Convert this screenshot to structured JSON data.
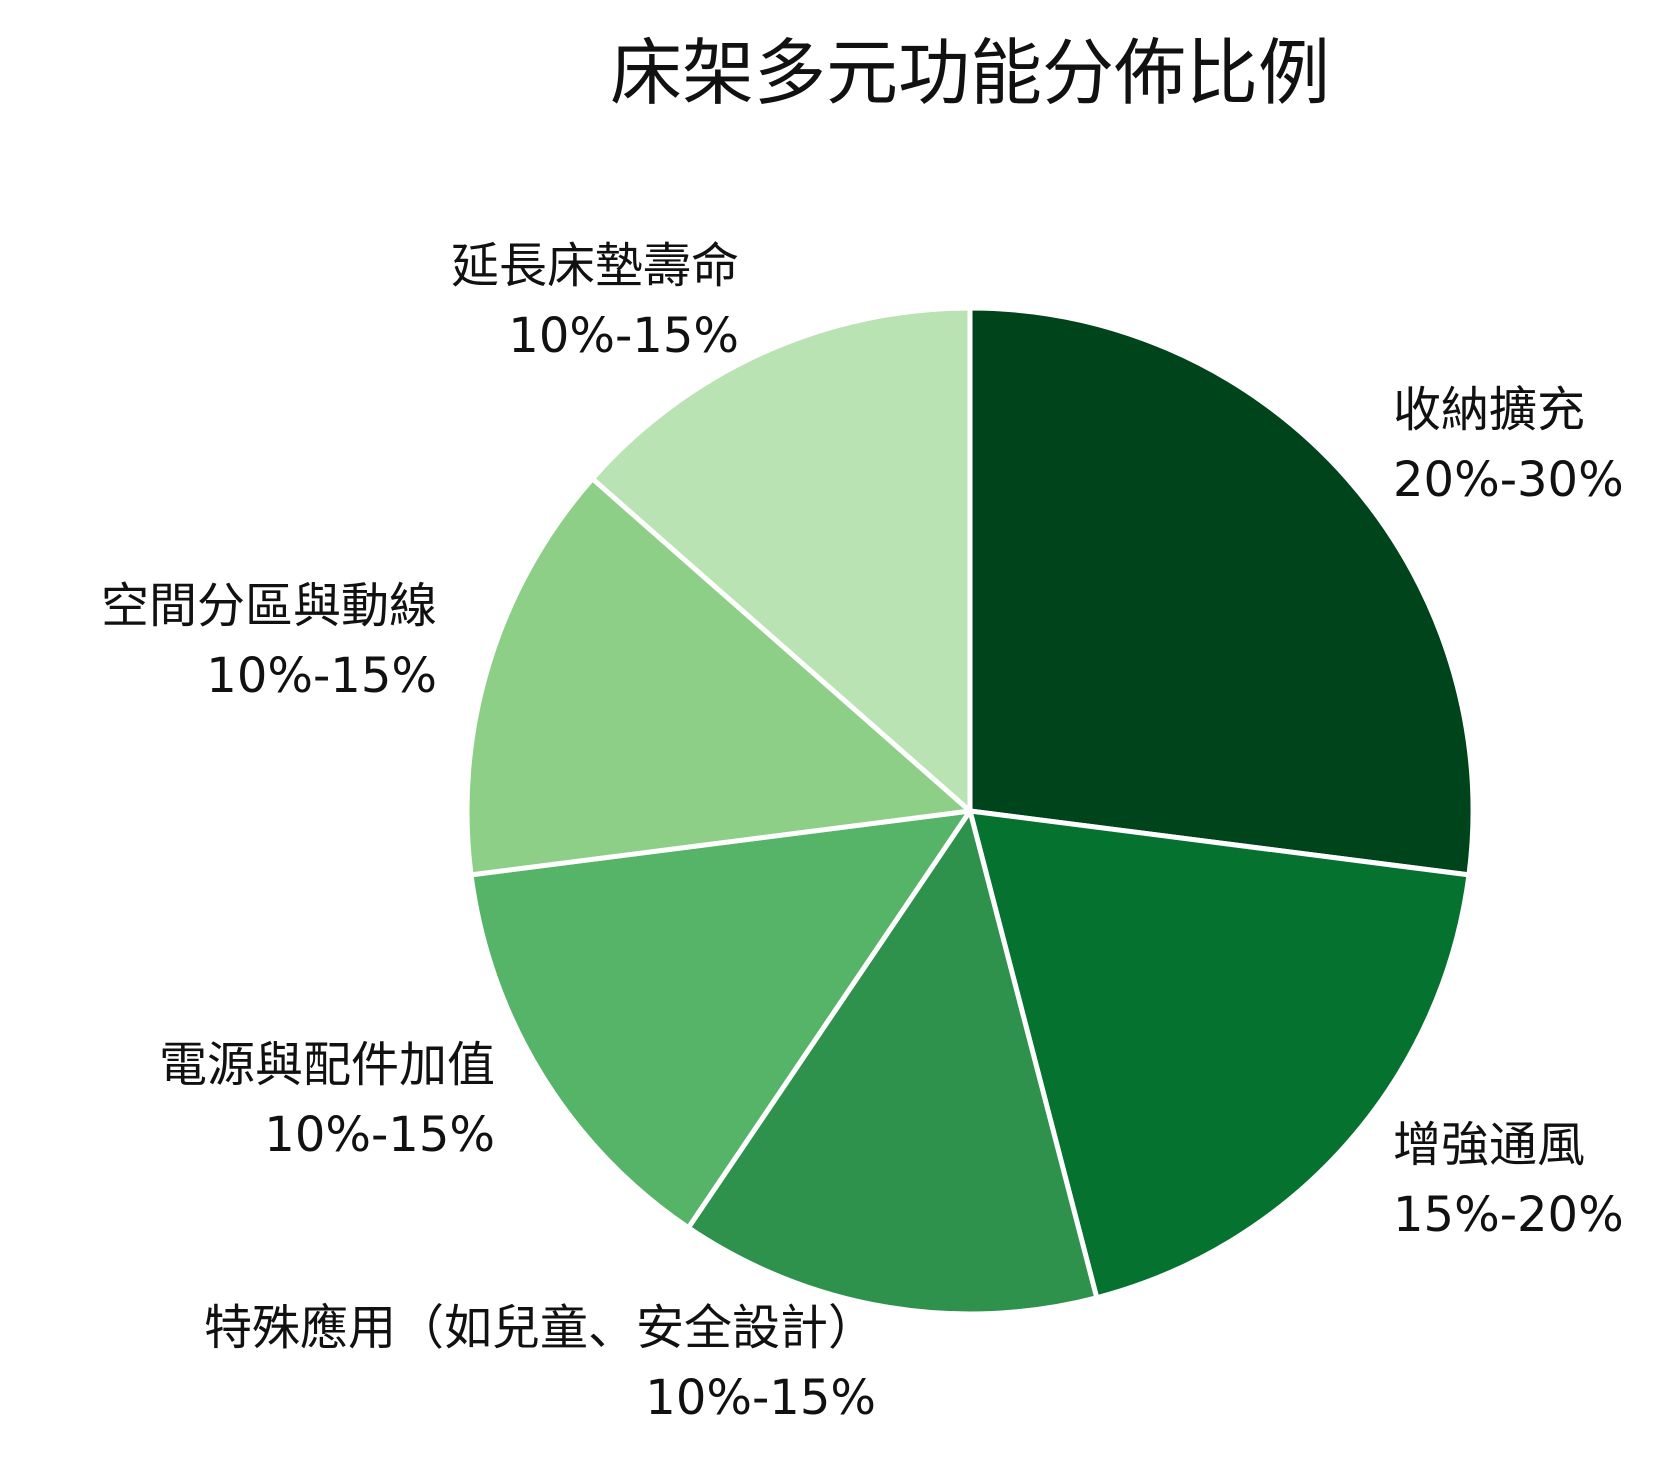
{
  "chart_data": {
    "type": "pie",
    "title": "床架多元功能分佈比例",
    "slices": [
      {
        "label": "收納擴充",
        "range_text": "20%-30%",
        "value": 25,
        "color": "#00441b"
      },
      {
        "label": "增強通風",
        "range_text": "15%-20%",
        "value": 17.5,
        "color": "#067230"
      },
      {
        "label": "特殊應用（如兒童、安全設計）",
        "range_text": "10%-15%",
        "value": 12.5,
        "color": "#2e924d"
      },
      {
        "label": "電源與配件加值",
        "range_text": "10%-15%",
        "value": 12.5,
        "color": "#56b468"
      },
      {
        "label": "空間分區與動線",
        "range_text": "10%-15%",
        "value": 12.5,
        "color": "#8ecf88"
      },
      {
        "label": "延長床墊壽命",
        "range_text": "10%-15%",
        "value": 12.5,
        "color": "#b9e3b2"
      }
    ],
    "start_angle": "12 o'clock",
    "direction": "clockwise"
  }
}
